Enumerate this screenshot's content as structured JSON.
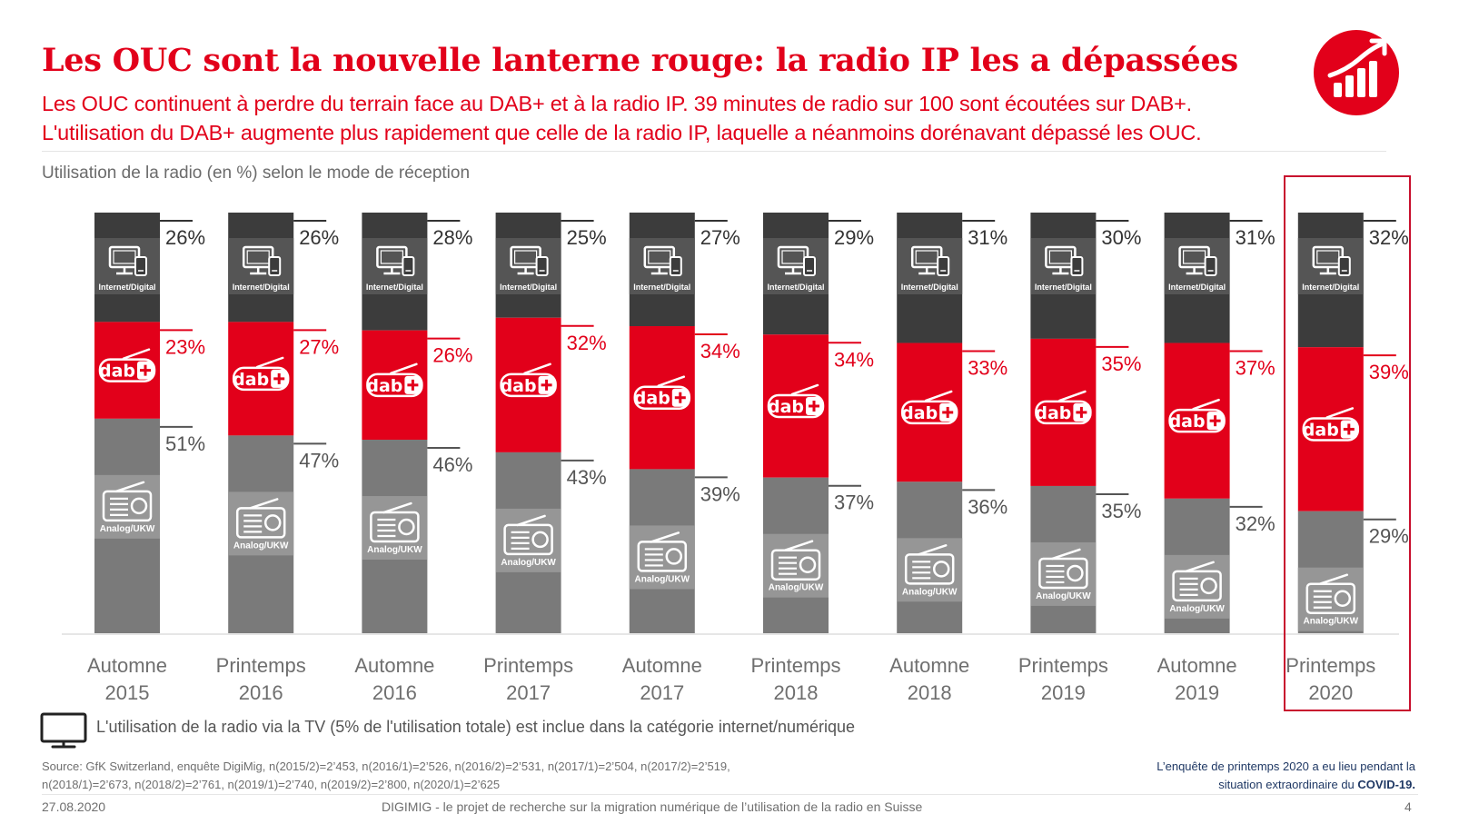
{
  "title": "Les OUC sont la nouvelle lanterne rouge: la radio IP les a dépassées",
  "subtitle_line1": "Les OUC continuent à perdre du terrain face au DAB+ et à la radio IP. 39 minutes de radio sur 100 sont écoutées sur DAB+.",
  "subtitle_line2": "L'utilisation du DAB+ augmente plus rapidement que celle de la radio IP, laquelle a néanmoins dorénavant dépassé les OUC.",
  "logo_icon": "rising-bar-chart-icon",
  "colors": {
    "accent": "#e2001a",
    "internet": "#3c3c3c",
    "dab": "#e2001a",
    "analog": "#7a7a7a"
  },
  "chart_data": {
    "type": "bar",
    "stacked": true,
    "normalized_100": true,
    "title": "Utilisation de la radio (en %) selon le mode de réception",
    "categories": [
      [
        "Automne",
        "2015"
      ],
      [
        "Printemps",
        "2016"
      ],
      [
        "Automne",
        "2016"
      ],
      [
        "Printemps",
        "2017"
      ],
      [
        "Automne",
        "2017"
      ],
      [
        "Printemps",
        "2018"
      ],
      [
        "Automne",
        "2018"
      ],
      [
        "Printemps",
        "2019"
      ],
      [
        "Automne",
        "2019"
      ],
      [
        "Printemps",
        "2020"
      ]
    ],
    "series": [
      {
        "name": "Internet/Digital",
        "icon": "computer-monitor-icon",
        "values": [
          26,
          26,
          28,
          25,
          27,
          29,
          31,
          30,
          31,
          32
        ]
      },
      {
        "name": "dab+",
        "icon": "dab-plus-radio-icon",
        "values": [
          23,
          27,
          26,
          32,
          34,
          34,
          33,
          35,
          37,
          39
        ]
      },
      {
        "name": "Analog/UKW",
        "icon": "analog-radio-icon",
        "values": [
          51,
          47,
          46,
          43,
          39,
          37,
          36,
          35,
          32,
          29
        ]
      }
    ],
    "value_suffix": "%",
    "highlighted_category": 9,
    "legend": "none",
    "grid": false
  },
  "tv_note_icon": "tv-icon",
  "tv_note": "L'utilisation de la radio via la TV (5% de l'utilisation totale) est inclue dans la catégorie internet/numérique",
  "source_line1": "Source: GfK Switzerland, enquête DigiMig, n(2015/2)=2’453, n(2016/1)=2’526, n(2016/2)=2’531, n(2017/1)=2’504, n(2017/2)=2’519,",
  "source_line2": "n(2018/1)=2’673, n(2018/2)=2’761, n(2019/1)=2’740, n(2019/2)=2’800, n(2020/1)=2’625",
  "covid_note_line1": "L’enquête de printemps 2020 a eu lieu pendant la",
  "covid_note_line2_prefix": "situation extraordinaire du",
  "covid_note_line2_bold": "COVID-19.",
  "footer": {
    "date": "27.08.2020",
    "project": "DIGIMIG - le projet de recherche sur la migration numérique de l’utilisation de la radio en Suisse",
    "page": "4"
  }
}
